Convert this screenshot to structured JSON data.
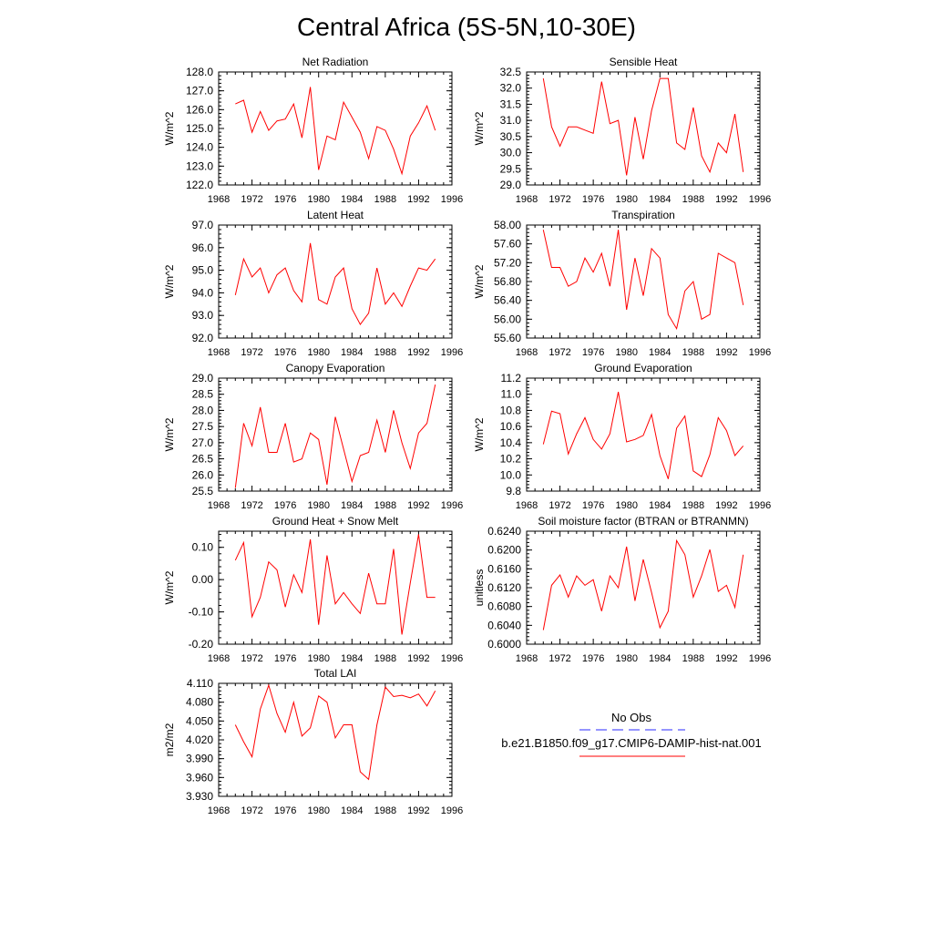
{
  "title": "Central Africa (5S-5N,10-30E)",
  "colors": {
    "model": "#ff0000",
    "obs": "#2b2bff"
  },
  "legend": {
    "obs_label": "No Obs",
    "model_label": "b.e21.B1850.f09_g17.CMIP6-DAMIP-hist-nat.001"
  },
  "chart_data": [
    {
      "type": "line",
      "title": "Net Radiation",
      "ylabel": "W/m^2",
      "xlim": [
        1968,
        1996
      ],
      "ylim": [
        122.0,
        128.0
      ],
      "yticks": [
        "122.0",
        "123.0",
        "124.0",
        "125.0",
        "126.0",
        "127.0",
        "128.0"
      ],
      "xticks": [
        "1968",
        "1972",
        "1976",
        "1980",
        "1984",
        "1988",
        "1992",
        "1996"
      ],
      "x": [
        1970,
        1971,
        1972,
        1973,
        1974,
        1975,
        1976,
        1977,
        1978,
        1979,
        1980,
        1981,
        1982,
        1983,
        1984,
        1985,
        1986,
        1987,
        1988,
        1989,
        1990,
        1991,
        1992,
        1993,
        1994
      ],
      "series": [
        {
          "values": [
            126.3,
            126.5,
            124.8,
            125.9,
            124.9,
            125.4,
            125.5,
            126.3,
            124.5,
            127.2,
            122.8,
            124.6,
            124.4,
            126.4,
            125.6,
            124.8,
            123.4,
            125.1,
            124.9,
            123.9,
            122.6,
            124.6,
            125.3,
            126.2,
            124.9
          ]
        }
      ]
    },
    {
      "type": "line",
      "title": "Sensible Heat",
      "ylabel": "W/m^2",
      "xlim": [
        1968,
        1996
      ],
      "ylim": [
        29.0,
        32.5
      ],
      "yticks": [
        "29.0",
        "29.5",
        "30.0",
        "30.5",
        "31.0",
        "31.5",
        "32.0",
        "32.5"
      ],
      "xticks": [
        "1968",
        "1972",
        "1976",
        "1980",
        "1984",
        "1988",
        "1992",
        "1996"
      ],
      "x": [
        1970,
        1971,
        1972,
        1973,
        1974,
        1975,
        1976,
        1977,
        1978,
        1979,
        1980,
        1981,
        1982,
        1983,
        1984,
        1985,
        1986,
        1987,
        1988,
        1989,
        1990,
        1991,
        1992,
        1993,
        1994
      ],
      "series": [
        {
          "values": [
            32.3,
            30.8,
            30.2,
            30.8,
            30.8,
            30.7,
            30.6,
            32.2,
            30.9,
            31.0,
            29.3,
            31.1,
            29.8,
            31.3,
            32.3,
            32.3,
            30.3,
            30.1,
            31.4,
            29.9,
            29.4,
            30.3,
            30.0,
            31.2,
            29.4
          ]
        }
      ]
    },
    {
      "type": "line",
      "title": "Latent Heat",
      "ylabel": "W/m^2",
      "xlim": [
        1968,
        1996
      ],
      "ylim": [
        92.0,
        97.0
      ],
      "yticks": [
        "92.0",
        "93.0",
        "94.0",
        "95.0",
        "96.0",
        "97.0"
      ],
      "xticks": [
        "1968",
        "1972",
        "1976",
        "1980",
        "1984",
        "1988",
        "1992",
        "1996"
      ],
      "x": [
        1970,
        1971,
        1972,
        1973,
        1974,
        1975,
        1976,
        1977,
        1978,
        1979,
        1980,
        1981,
        1982,
        1983,
        1984,
        1985,
        1986,
        1987,
        1988,
        1989,
        1990,
        1991,
        1992,
        1993,
        1994
      ],
      "series": [
        {
          "values": [
            93.9,
            95.5,
            94.7,
            95.1,
            94.0,
            94.8,
            95.1,
            94.1,
            93.6,
            96.2,
            93.7,
            93.5,
            94.7,
            95.1,
            93.3,
            92.6,
            93.1,
            95.1,
            93.5,
            94.0,
            93.4,
            94.3,
            95.1,
            95.0,
            95.5
          ]
        }
      ]
    },
    {
      "type": "line",
      "title": "Transpiration",
      "ylabel": "W/m^2",
      "xlim": [
        1968,
        1996
      ],
      "ylim": [
        55.6,
        58.0
      ],
      "yticks": [
        "55.60",
        "56.00",
        "56.40",
        "56.80",
        "57.20",
        "57.60",
        "58.00"
      ],
      "xticks": [
        "1968",
        "1972",
        "1976",
        "1980",
        "1984",
        "1988",
        "1992",
        "1996"
      ],
      "x": [
        1970,
        1971,
        1972,
        1973,
        1974,
        1975,
        1976,
        1977,
        1978,
        1979,
        1980,
        1981,
        1982,
        1983,
        1984,
        1985,
        1986,
        1987,
        1988,
        1989,
        1990,
        1991,
        1992,
        1993,
        1994
      ],
      "series": [
        {
          "values": [
            57.9,
            57.1,
            57.1,
            56.7,
            56.8,
            57.3,
            57.0,
            57.4,
            56.7,
            57.9,
            56.2,
            57.3,
            56.5,
            57.5,
            57.3,
            56.1,
            55.8,
            56.6,
            56.8,
            56.0,
            56.1,
            57.4,
            57.3,
            57.2,
            56.3
          ]
        }
      ]
    },
    {
      "type": "line",
      "title": "Canopy Evaporation",
      "ylabel": "W/m^2",
      "xlim": [
        1968,
        1996
      ],
      "ylim": [
        25.5,
        29.0
      ],
      "yticks": [
        "25.5",
        "26.0",
        "26.5",
        "27.0",
        "27.5",
        "28.0",
        "28.5",
        "29.0"
      ],
      "xticks": [
        "1968",
        "1972",
        "1976",
        "1980",
        "1984",
        "1988",
        "1992",
        "1996"
      ],
      "x": [
        1970,
        1971,
        1972,
        1973,
        1974,
        1975,
        1976,
        1977,
        1978,
        1979,
        1980,
        1981,
        1982,
        1983,
        1984,
        1985,
        1986,
        1987,
        1988,
        1989,
        1990,
        1991,
        1992,
        1993,
        1994
      ],
      "series": [
        {
          "values": [
            25.6,
            27.6,
            26.9,
            28.1,
            26.7,
            26.7,
            27.6,
            26.4,
            26.5,
            27.3,
            27.1,
            25.7,
            27.8,
            26.8,
            25.8,
            26.6,
            26.7,
            27.7,
            26.7,
            28.0,
            27.0,
            26.2,
            27.3,
            27.6,
            28.8
          ]
        }
      ]
    },
    {
      "type": "line",
      "title": "Ground Evaporation",
      "ylabel": "W/m^2",
      "xlim": [
        1968,
        1996
      ],
      "ylim": [
        9.8,
        11.2
      ],
      "yticks": [
        "9.8",
        "10.0",
        "10.2",
        "10.4",
        "10.6",
        "10.8",
        "11.0",
        "11.2"
      ],
      "xticks": [
        "1968",
        "1972",
        "1976",
        "1980",
        "1984",
        "1988",
        "1992",
        "1996"
      ],
      "x": [
        1970,
        1971,
        1972,
        1973,
        1974,
        1975,
        1976,
        1977,
        1978,
        1979,
        1980,
        1981,
        1982,
        1983,
        1984,
        1985,
        1986,
        1987,
        1988,
        1989,
        1990,
        1991,
        1992,
        1993,
        1994
      ],
      "series": [
        {
          "values": [
            10.38,
            10.79,
            10.76,
            10.26,
            10.51,
            10.71,
            10.44,
            10.32,
            10.51,
            11.03,
            10.41,
            10.44,
            10.49,
            10.75,
            10.24,
            9.95,
            10.58,
            10.73,
            10.05,
            9.98,
            10.25,
            10.71,
            10.55,
            10.24,
            10.36
          ]
        }
      ]
    },
    {
      "type": "line",
      "title": "Ground Heat + Snow Melt",
      "ylabel": "W/m^2",
      "xlim": [
        1968,
        1996
      ],
      "ylim": [
        -0.2,
        0.15
      ],
      "yticks": [
        "-0.20",
        "-0.10",
        "0.00",
        "0.10"
      ],
      "ytick_values": [
        -0.2,
        -0.1,
        0.0,
        0.1
      ],
      "xticks": [
        "1968",
        "1972",
        "1976",
        "1980",
        "1984",
        "1988",
        "1992",
        "1996"
      ],
      "x": [
        1970,
        1971,
        1972,
        1973,
        1974,
        1975,
        1976,
        1977,
        1978,
        1979,
        1980,
        1981,
        1982,
        1983,
        1984,
        1985,
        1986,
        1987,
        1988,
        1989,
        1990,
        1991,
        1992,
        1993,
        1994
      ],
      "series": [
        {
          "values": [
            0.06,
            0.115,
            -0.115,
            -0.055,
            0.055,
            0.03,
            -0.085,
            0.015,
            -0.04,
            0.125,
            -0.14,
            0.075,
            -0.075,
            -0.04,
            -0.075,
            -0.105,
            0.02,
            -0.075,
            -0.075,
            0.095,
            -0.17,
            -0.01,
            0.14,
            -0.055,
            -0.055
          ]
        }
      ]
    },
    {
      "type": "line",
      "title": "Soil moisture factor (BTRAN or BTRANMN)",
      "ylabel": "unitless",
      "xlim": [
        1968,
        1996
      ],
      "ylim": [
        0.6,
        0.624
      ],
      "yticks": [
        "0.6000",
        "0.6040",
        "0.6080",
        "0.6120",
        "0.6160",
        "0.6200",
        "0.6240"
      ],
      "xticks": [
        "1968",
        "1972",
        "1976",
        "1980",
        "1984",
        "1988",
        "1992",
        "1996"
      ],
      "x": [
        1970,
        1971,
        1972,
        1973,
        1974,
        1975,
        1976,
        1977,
        1978,
        1979,
        1980,
        1981,
        1982,
        1983,
        1984,
        1985,
        1986,
        1987,
        1988,
        1989,
        1990,
        1991,
        1992,
        1993,
        1994
      ],
      "series": [
        {
          "values": [
            0.603,
            0.6125,
            0.6147,
            0.61,
            0.6145,
            0.6125,
            0.6137,
            0.607,
            0.6145,
            0.612,
            0.6207,
            0.6092,
            0.618,
            0.611,
            0.6035,
            0.607,
            0.622,
            0.619,
            0.61,
            0.6145,
            0.6201,
            0.6112,
            0.6125,
            0.6078,
            0.619
          ]
        }
      ]
    },
    {
      "type": "line",
      "title": "Total LAI",
      "ylabel": "m2/m2",
      "xlim": [
        1968,
        1996
      ],
      "ylim": [
        3.93,
        4.11
      ],
      "yticks": [
        "3.930",
        "3.960",
        "3.990",
        "4.020",
        "4.050",
        "4.080",
        "4.110"
      ],
      "xticks": [
        "1968",
        "1972",
        "1976",
        "1980",
        "1984",
        "1988",
        "1992",
        "1996"
      ],
      "x": [
        1970,
        1971,
        1972,
        1973,
        1974,
        1975,
        1976,
        1977,
        1978,
        1979,
        1980,
        1981,
        1982,
        1983,
        1984,
        1985,
        1986,
        1987,
        1988,
        1989,
        1990,
        1991,
        1992,
        1993,
        1994
      ],
      "series": [
        {
          "values": [
            4.044,
            4.017,
            3.993,
            4.069,
            4.107,
            4.062,
            4.032,
            4.08,
            4.026,
            4.039,
            4.09,
            4.08,
            4.023,
            4.044,
            4.044,
            3.969,
            3.957,
            4.044,
            4.104,
            4.089,
            4.091,
            4.087,
            4.093,
            4.074,
            4.098
          ]
        }
      ]
    }
  ]
}
